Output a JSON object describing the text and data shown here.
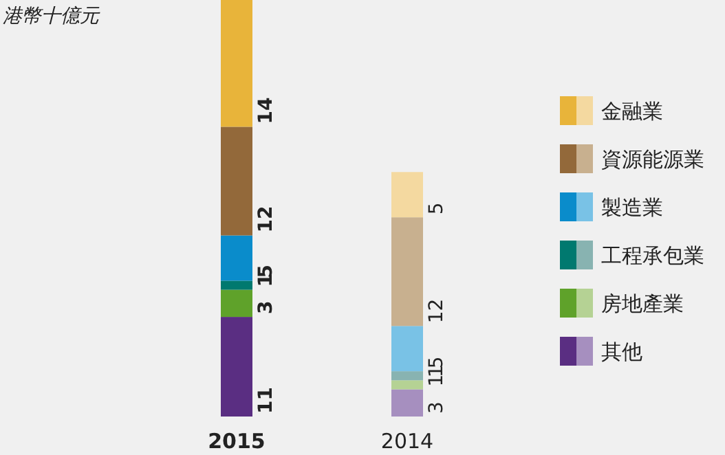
{
  "chart_data": {
    "type": "bar",
    "stacked": true,
    "ylabel": "港幣十億元",
    "categories": [
      "2015",
      "2014"
    ],
    "data_labels": true,
    "legend": "right",
    "series": [
      {
        "name": "其他",
        "colors": [
          "#5a2e82",
          "#a68fbf"
        ],
        "values": [
          11,
          3
        ]
      },
      {
        "name": "房地產業",
        "colors": [
          "#5fa22a",
          "#b5d294"
        ],
        "values": [
          3,
          1
        ]
      },
      {
        "name": "工程承包業",
        "colors": [
          "#00796f",
          "#88b3b1"
        ],
        "values": [
          1,
          1
        ]
      },
      {
        "name": "製造業",
        "colors": [
          "#0a8ccb",
          "#79c2e6"
        ],
        "values": [
          5,
          5
        ]
      },
      {
        "name": "資源能源業",
        "colors": [
          "#93693a",
          "#c8b08f"
        ],
        "values": [
          12,
          12
        ]
      },
      {
        "name": "金融業",
        "colors": [
          "#e8b43a",
          "#f4d9a0"
        ],
        "values": [
          14,
          5
        ]
      }
    ]
  }
}
